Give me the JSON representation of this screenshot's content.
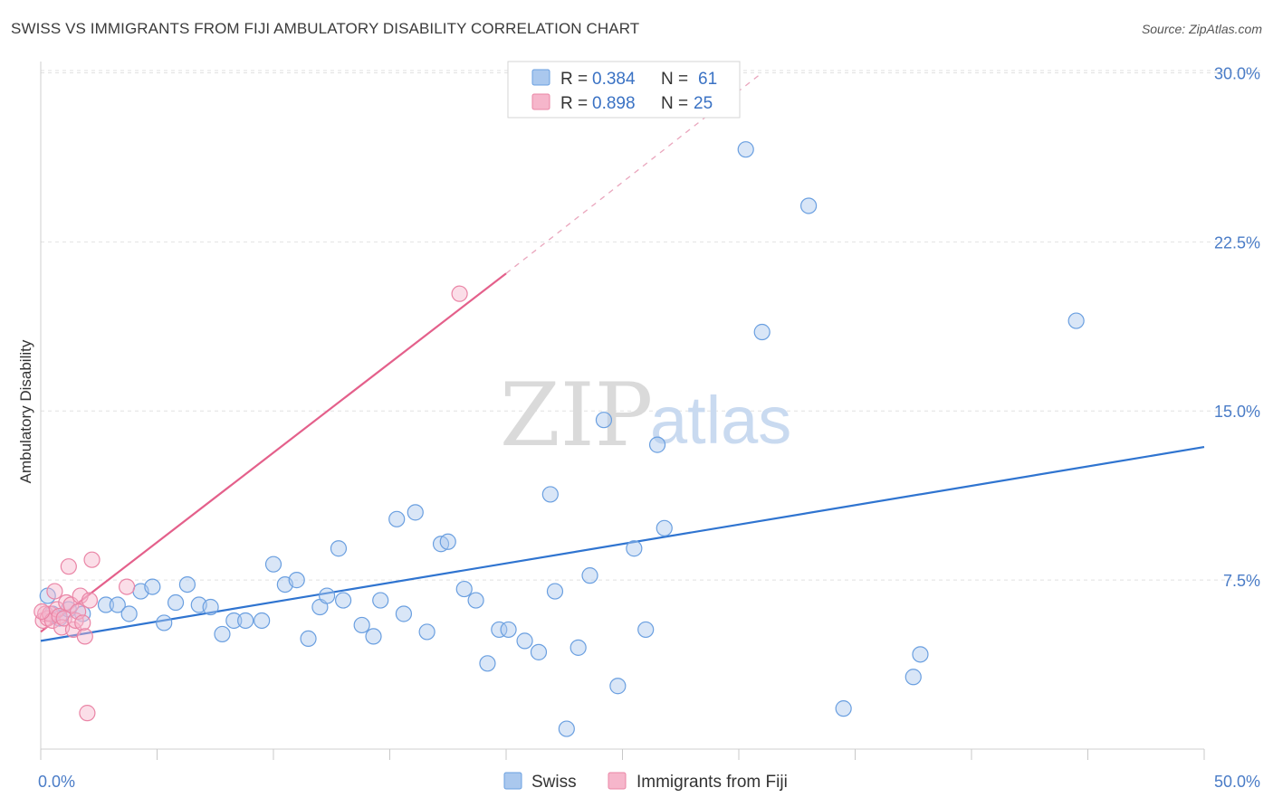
{
  "title": "SWISS VS IMMIGRANTS FROM FIJI AMBULATORY DISABILITY CORRELATION CHART",
  "source": "Source: ZipAtlas.com",
  "watermark": {
    "zip": "ZIP",
    "atlas": "atlas"
  },
  "colors": {
    "swiss_fill": "#aac8ee",
    "swiss_stroke": "#6a9fe0",
    "swiss_line": "#2f74d0",
    "fiji_fill": "#f6b6cb",
    "fiji_stroke": "#ea85a6",
    "fiji_line": "#e4608b",
    "grid": "#e2e2e2",
    "axis_label": "#4a7cc7"
  },
  "legend": {
    "rows": [
      {
        "r_label": "R = ",
        "r_value": "0.384",
        "n_label": "N = ",
        "n_value": "61"
      },
      {
        "r_label": "R = ",
        "r_value": "0.898",
        "n_label": "N = ",
        "n_value": "25"
      }
    ]
  },
  "chart_data": {
    "type": "scatter",
    "ylabel": "Ambulatory Disability",
    "xlabel": "",
    "xlim": [
      0,
      50
    ],
    "ylim": [
      0,
      30.5
    ],
    "x_tick_labels": [
      "0.0%",
      "50.0%"
    ],
    "y_ticks": [
      7.5,
      15.0,
      22.5,
      30.0
    ],
    "y_tick_labels": [
      "7.5%",
      "15.0%",
      "22.5%",
      "30.0%"
    ],
    "grid": true,
    "legend_position": "top-center",
    "series": [
      {
        "name": "Swiss",
        "points": [
          [
            0.3,
            6.8
          ],
          [
            0.5,
            6.0
          ],
          [
            0.8,
            5.8
          ],
          [
            1.2,
            6.2
          ],
          [
            1.8,
            6.0
          ],
          [
            2.8,
            6.4
          ],
          [
            3.3,
            6.4
          ],
          [
            3.8,
            6.0
          ],
          [
            4.3,
            7.0
          ],
          [
            4.8,
            7.2
          ],
          [
            5.3,
            5.6
          ],
          [
            5.8,
            6.5
          ],
          [
            6.3,
            7.3
          ],
          [
            6.8,
            6.4
          ],
          [
            7.3,
            6.3
          ],
          [
            7.8,
            5.1
          ],
          [
            8.3,
            5.7
          ],
          [
            8.8,
            5.7
          ],
          [
            9.5,
            5.7
          ],
          [
            10.0,
            8.2
          ],
          [
            10.5,
            7.3
          ],
          [
            11.0,
            7.5
          ],
          [
            11.5,
            4.9
          ],
          [
            12.0,
            6.3
          ],
          [
            12.3,
            6.8
          ],
          [
            12.8,
            8.9
          ],
          [
            13.0,
            6.6
          ],
          [
            13.8,
            5.5
          ],
          [
            14.3,
            5.0
          ],
          [
            14.6,
            6.6
          ],
          [
            15.3,
            10.2
          ],
          [
            15.6,
            6.0
          ],
          [
            16.1,
            10.5
          ],
          [
            16.6,
            5.2
          ],
          [
            17.2,
            9.1
          ],
          [
            17.5,
            9.2
          ],
          [
            18.2,
            7.1
          ],
          [
            18.7,
            6.6
          ],
          [
            19.2,
            3.8
          ],
          [
            19.7,
            5.3
          ],
          [
            20.1,
            5.3
          ],
          [
            20.8,
            4.8
          ],
          [
            21.4,
            4.3
          ],
          [
            21.9,
            11.3
          ],
          [
            22.1,
            7.0
          ],
          [
            22.6,
            0.9
          ],
          [
            23.1,
            4.5
          ],
          [
            23.6,
            7.7
          ],
          [
            24.2,
            14.6
          ],
          [
            24.8,
            2.8
          ],
          [
            25.5,
            8.9
          ],
          [
            26.0,
            5.3
          ],
          [
            26.5,
            13.5
          ],
          [
            26.8,
            9.8
          ],
          [
            30.3,
            26.6
          ],
          [
            31.0,
            18.5
          ],
          [
            33.0,
            24.1
          ],
          [
            34.5,
            1.8
          ],
          [
            37.5,
            3.2
          ],
          [
            37.8,
            4.2
          ],
          [
            44.5,
            19.0
          ]
        ],
        "trend": {
          "x": [
            0,
            50
          ],
          "y": [
            4.8,
            13.4
          ]
        }
      },
      {
        "name": "Immigrants from Fiji",
        "points": [
          [
            0.1,
            5.7
          ],
          [
            0.2,
            6.0
          ],
          [
            0.3,
            5.8
          ],
          [
            0.4,
            6.0
          ],
          [
            0.5,
            5.7
          ],
          [
            0.6,
            7.0
          ],
          [
            0.7,
            6.2
          ],
          [
            0.8,
            5.9
          ],
          [
            0.9,
            5.4
          ],
          [
            1.0,
            5.8
          ],
          [
            1.1,
            6.5
          ],
          [
            1.2,
            8.1
          ],
          [
            1.3,
            6.4
          ],
          [
            1.4,
            5.3
          ],
          [
            1.5,
            5.7
          ],
          [
            1.6,
            6.1
          ],
          [
            1.7,
            6.8
          ],
          [
            1.8,
            5.6
          ],
          [
            1.9,
            5.0
          ],
          [
            2.0,
            1.6
          ],
          [
            2.1,
            6.6
          ],
          [
            2.2,
            8.4
          ],
          [
            3.7,
            7.2
          ],
          [
            18.0,
            20.2
          ],
          [
            0.05,
            6.1
          ]
        ],
        "trend": {
          "x": [
            0,
            20
          ],
          "y": [
            5.2,
            21.1
          ]
        },
        "trend_dashed": {
          "x": [
            20,
            31.0
          ],
          "y": [
            21.1,
            30.0
          ]
        }
      }
    ]
  },
  "bottom_legend": [
    "Swiss",
    "Immigrants from Fiji"
  ]
}
